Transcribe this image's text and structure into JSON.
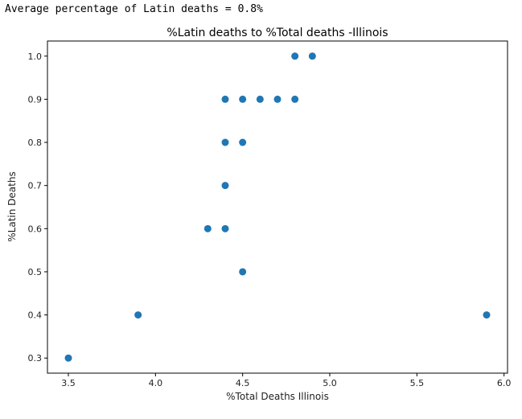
{
  "output": {
    "text": "Average percentage of Latin deaths = 0.8%"
  },
  "colors": {
    "marker": "#1f77b4",
    "axis": "#000000",
    "background": "#ffffff"
  },
  "chart_data": {
    "type": "scatter",
    "title": "%Latin deaths to %Total deaths -Illinois",
    "xlabel": "%Total Deaths Illinois",
    "ylabel": "%Latin Deaths",
    "xlim": [
      3.38,
      6.02
    ],
    "ylim": [
      0.265,
      1.035
    ],
    "xticks": [
      3.5,
      4.0,
      4.5,
      5.0,
      5.5,
      6.0
    ],
    "xtick_labels": [
      "3.5",
      "4.0",
      "4.5",
      "5.0",
      "5.5",
      "6.0"
    ],
    "yticks": [
      0.3,
      0.4,
      0.5,
      0.6,
      0.7,
      0.8,
      0.9,
      1.0
    ],
    "ytick_labels": [
      "0.3",
      "0.4",
      "0.5",
      "0.6",
      "0.7",
      "0.8",
      "0.9",
      "1.0"
    ],
    "grid": false,
    "points": [
      {
        "x": 3.5,
        "y": 0.3
      },
      {
        "x": 3.9,
        "y": 0.4
      },
      {
        "x": 4.3,
        "y": 0.6
      },
      {
        "x": 4.4,
        "y": 0.6
      },
      {
        "x": 4.4,
        "y": 0.7
      },
      {
        "x": 4.4,
        "y": 0.8
      },
      {
        "x": 4.4,
        "y": 0.9
      },
      {
        "x": 4.5,
        "y": 0.5
      },
      {
        "x": 4.5,
        "y": 0.8
      },
      {
        "x": 4.5,
        "y": 0.9
      },
      {
        "x": 4.6,
        "y": 0.9
      },
      {
        "x": 4.7,
        "y": 0.9
      },
      {
        "x": 4.8,
        "y": 0.9
      },
      {
        "x": 4.8,
        "y": 1.0
      },
      {
        "x": 4.9,
        "y": 1.0
      },
      {
        "x": 5.9,
        "y": 0.4
      }
    ]
  }
}
